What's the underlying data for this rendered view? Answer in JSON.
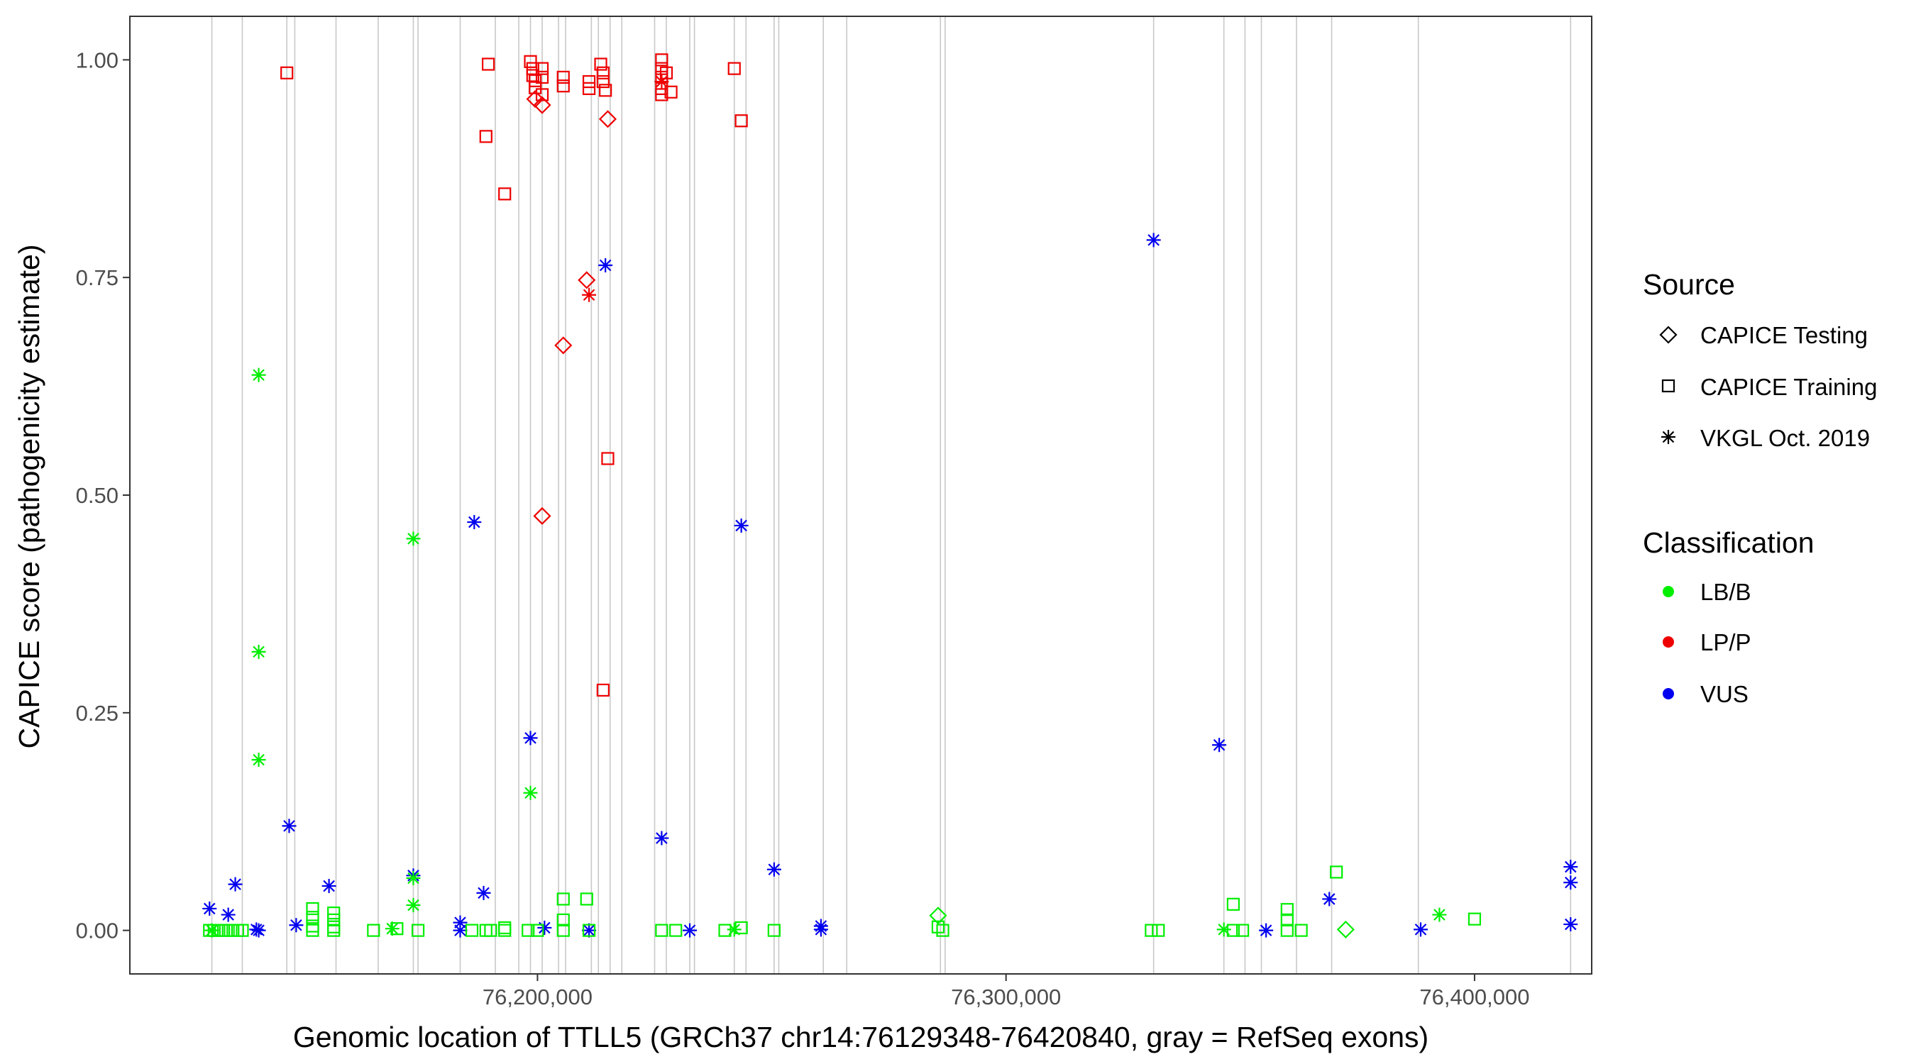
{
  "chart_data": {
    "type": "scatter",
    "xlabel": "Genomic location of TTLL5 (GRCh37 chr14:76129348-76420840, gray = RefSeq exons)",
    "ylabel": "CAPICE score (pathogenicity estimate)",
    "xlim": [
      76113000,
      76425000
    ],
    "ylim": [
      -0.05,
      1.05
    ],
    "x_ticks": [
      76200000,
      76300000,
      76400000
    ],
    "x_tick_labels": [
      "76,200,000",
      "76,300,000",
      "76,400,000"
    ],
    "y_ticks": [
      0,
      0.25,
      0.5,
      0.75,
      1
    ],
    "y_tick_labels": [
      "0.00",
      "0.25",
      "0.50",
      "0.75",
      "1.00"
    ],
    "grid": false,
    "legend_position": "right",
    "exons": [
      76130500,
      76137000,
      76146500,
      76148200,
      76157000,
      76166000,
      76173500,
      76174500,
      76183500,
      76191000,
      76196000,
      76198500,
      76201000,
      76204500,
      76206000,
      76211500,
      76213000,
      76215500,
      76218000,
      76225000,
      76227500,
      76232500,
      76233500,
      76242000,
      76244500,
      76250500,
      76251500,
      76261000,
      76266000,
      76286000,
      76287000,
      76331500,
      76346500,
      76351000,
      76354500,
      76362000,
      76369500,
      76388000,
      76420500
    ],
    "legends": {
      "source": {
        "title": "Source",
        "items": [
          {
            "label": "CAPICE Testing",
            "shape": "diamond"
          },
          {
            "label": "CAPICE Training",
            "shape": "square"
          },
          {
            "label": "VKGL Oct. 2019",
            "shape": "asterisk"
          }
        ]
      },
      "classification": {
        "title": "Classification",
        "items": [
          {
            "label": "LB/B",
            "color": "#00ee00"
          },
          {
            "label": "LP/P",
            "color": "#ee0000"
          },
          {
            "label": "VUS",
            "color": "#0000ee"
          }
        ]
      }
    },
    "series": [
      {
        "class": "LP/P",
        "source": "CAPICE Training",
        "points": [
          [
            76146500,
            0.985
          ],
          [
            76189500,
            0.995
          ],
          [
            76189000,
            0.912
          ],
          [
            76193000,
            0.846
          ],
          [
            76198500,
            0.998
          ],
          [
            76199000,
            0.99
          ],
          [
            76199000,
            0.982
          ],
          [
            76199500,
            0.976
          ],
          [
            76199500,
            0.968
          ],
          [
            76201000,
            0.99
          ],
          [
            76201000,
            0.98
          ],
          [
            76201000,
            0.96
          ],
          [
            76205500,
            0.98
          ],
          [
            76205500,
            0.97
          ],
          [
            76211000,
            0.975
          ],
          [
            76211000,
            0.967
          ],
          [
            76213500,
            0.995
          ],
          [
            76214000,
            0.985
          ],
          [
            76214000,
            0.975
          ],
          [
            76214500,
            0.965
          ],
          [
            76215000,
            0.542
          ],
          [
            76214000,
            0.276
          ],
          [
            76226500,
            1.0
          ],
          [
            76226500,
            0.99
          ],
          [
            76226500,
            0.98
          ],
          [
            76226500,
            0.967
          ],
          [
            76226500,
            0.96
          ],
          [
            76227500,
            0.985
          ],
          [
            76228500,
            0.963
          ],
          [
            76242000,
            0.99
          ],
          [
            76243500,
            0.93
          ]
        ]
      },
      {
        "class": "LP/P",
        "source": "CAPICE Testing",
        "points": [
          [
            76199500,
            0.955
          ],
          [
            76201000,
            0.948
          ],
          [
            76205500,
            0.672
          ],
          [
            76210500,
            0.747
          ],
          [
            76201000,
            0.476
          ],
          [
            76215000,
            0.932
          ]
        ]
      },
      {
        "class": "LP/P",
        "source": "VKGL Oct. 2019",
        "points": [
          [
            76211000,
            0.73
          ],
          [
            76226500,
            0.975
          ]
        ]
      },
      {
        "class": "VUS",
        "source": "VKGL Oct. 2019",
        "points": [
          [
            76130000,
            0.025
          ],
          [
            76134000,
            0.018
          ],
          [
            76135500,
            0.053
          ],
          [
            76140000,
            0.001
          ],
          [
            76140500,
            0.0
          ],
          [
            76147000,
            0.12
          ],
          [
            76148500,
            0.006
          ],
          [
            76155500,
            0.051
          ],
          [
            76173500,
            0.063
          ],
          [
            76183500,
            0.009
          ],
          [
            76183500,
            0.0
          ],
          [
            76186500,
            0.469
          ],
          [
            76188500,
            0.043
          ],
          [
            76198500,
            0.221
          ],
          [
            76201500,
            0.003
          ],
          [
            76211000,
            0.0
          ],
          [
            76214500,
            0.764
          ],
          [
            76226500,
            0.106
          ],
          [
            76232500,
            0.0
          ],
          [
            76243500,
            0.465
          ],
          [
            76250500,
            0.07
          ],
          [
            76260500,
            0.005
          ],
          [
            76260500,
            0.001
          ],
          [
            76331500,
            0.793
          ],
          [
            76345500,
            0.213
          ],
          [
            76355500,
            0.0
          ],
          [
            76369000,
            0.036
          ],
          [
            76388500,
            0.001
          ],
          [
            76420500,
            0.073
          ],
          [
            76420500,
            0.055
          ],
          [
            76420500,
            0.007
          ]
        ]
      },
      {
        "class": "LB/B",
        "source": "VKGL Oct. 2019",
        "points": [
          [
            76140500,
            0.638
          ],
          [
            76140500,
            0.32
          ],
          [
            76140500,
            0.196
          ],
          [
            76173500,
            0.45
          ],
          [
            76173500,
            0.029
          ],
          [
            76173500,
            0.06
          ],
          [
            76198500,
            0.158
          ],
          [
            76169000,
            0.002
          ],
          [
            76130500,
            0.0
          ],
          [
            76392500,
            0.018
          ],
          [
            76242000,
            0.001
          ],
          [
            76346500,
            0.001
          ]
        ]
      },
      {
        "class": "LB/B",
        "source": "CAPICE Training",
        "points": [
          [
            76130000,
            0.0
          ],
          [
            76131000,
            0.0
          ],
          [
            76132000,
            0.0
          ],
          [
            76133000,
            0.0
          ],
          [
            76134000,
            0.0
          ],
          [
            76135000,
            0.0
          ],
          [
            76136000,
            0.0
          ],
          [
            76137000,
            0.0
          ],
          [
            76152000,
            0.025
          ],
          [
            76152000,
            0.015
          ],
          [
            76152000,
            0.005
          ],
          [
            76152000,
            0.0
          ],
          [
            76156500,
            0.02
          ],
          [
            76156500,
            0.012
          ],
          [
            76156500,
            0.004
          ],
          [
            76156500,
            0.0
          ],
          [
            76165000,
            0.0
          ],
          [
            76170000,
            0.002
          ],
          [
            76174500,
            0.0
          ],
          [
            76186000,
            0.0
          ],
          [
            76189000,
            0.0
          ],
          [
            76190000,
            0.0
          ],
          [
            76193000,
            0.003
          ],
          [
            76193000,
            0.0
          ],
          [
            76198000,
            0.0
          ],
          [
            76200000,
            0.0
          ],
          [
            76205500,
            0.036
          ],
          [
            76205500,
            0.012
          ],
          [
            76205500,
            0.0
          ],
          [
            76210500,
            0.036
          ],
          [
            76211000,
            0.0
          ],
          [
            76226500,
            0.0
          ],
          [
            76229500,
            0.0
          ],
          [
            76240000,
            0.0
          ],
          [
            76243500,
            0.003
          ],
          [
            76250500,
            0.0
          ],
          [
            76285500,
            0.004
          ],
          [
            76286500,
            0.0
          ],
          [
            76331000,
            0.0
          ],
          [
            76332500,
            0.0
          ],
          [
            76348500,
            0.03
          ],
          [
            76348500,
            0.0
          ],
          [
            76350500,
            0.0
          ],
          [
            76360000,
            0.024
          ],
          [
            76360000,
            0.012
          ],
          [
            76360000,
            0.0
          ],
          [
            76363000,
            0.0
          ],
          [
            76370500,
            0.067
          ],
          [
            76400000,
            0.013
          ]
        ]
      },
      {
        "class": "LB/B",
        "source": "CAPICE Testing",
        "points": [
          [
            76285500,
            0.017
          ],
          [
            76372500,
            0.001
          ]
        ]
      }
    ]
  }
}
